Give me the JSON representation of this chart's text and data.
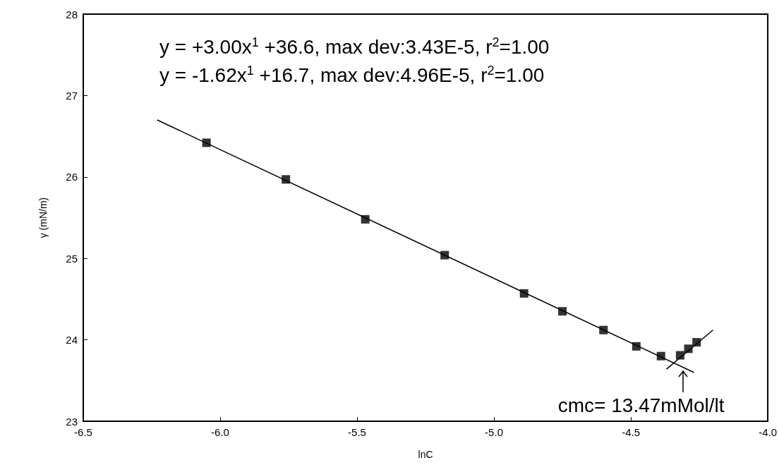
{
  "chart_data": {
    "type": "scatter",
    "xlabel": "lnC",
    "ylabel": "γ (mN/m)",
    "xlim": [
      -6.5,
      -4.0
    ],
    "xticks": [
      {
        "value": -6.5,
        "label": "-6.5"
      },
      {
        "value": -6.0,
        "label": "-6.0"
      },
      {
        "value": -5.5,
        "label": "-5.5"
      },
      {
        "value": -5.0,
        "label": "-5.0"
      },
      {
        "value": -4.5,
        "label": "-4.5"
      },
      {
        "value": -4.0,
        "label": "-4.0"
      }
    ],
    "ylim": [
      23,
      28
    ],
    "yticks": [
      23,
      24,
      25,
      26,
      27,
      28
    ],
    "grid": false,
    "series": [
      {
        "color": "#000000",
        "marker": "square",
        "x": [
          -6.05,
          -5.76,
          -5.47,
          -5.18,
          -4.89,
          -4.75,
          -4.6,
          -4.48,
          -4.39,
          -4.32,
          -4.29,
          -4.26
        ],
        "values": [
          26.42,
          25.97,
          25.48,
          25.04,
          24.57,
          24.35,
          24.12,
          23.92,
          23.8,
          23.81,
          23.89,
          23.97
        ]
      },
      {
        "type": "line",
        "color": "#000000",
        "marker": "none",
        "line_style": "solid",
        "x": [
          -6.23,
          -4.27
        ],
        "values": [
          26.7,
          23.6
        ]
      },
      {
        "type": "line",
        "color": "#000000",
        "marker": "none",
        "line_style": "solid",
        "x": [
          -4.37,
          -4.2
        ],
        "values": [
          23.64,
          24.12
        ]
      }
    ],
    "annotations": [
      "y = +3.00x$^{1}$ +36.6, max dev:3.43E-5, r$^{2}$=1.00",
      "y = -1.62x$^{1}$ +16.7, max dev:4.96E-5, r$^{2}$=1.00",
      {
        "text": "cmc= 13.47mMol/lt",
        "x": -4.31,
        "y": 23.68
      }
    ]
  }
}
